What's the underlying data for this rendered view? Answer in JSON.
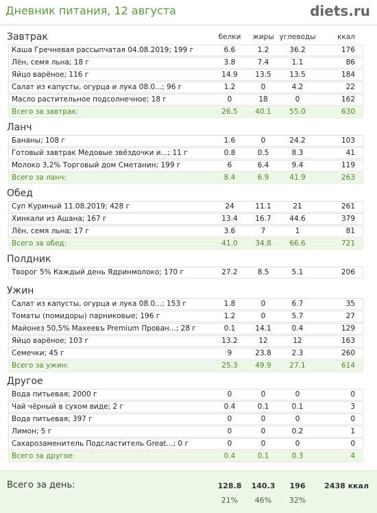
{
  "header": {
    "title": "Дневник питания, 12 августа",
    "logo": "diets.ru"
  },
  "columns": [
    "белки",
    "жиры",
    "углеводы",
    "ккал"
  ],
  "sections": [
    {
      "title": "Завтрак",
      "rows": [
        [
          "Каша Гречневая рассыпчатая 04.08.2019; 199 г",
          "6.6",
          "1.2",
          "36.2",
          "176"
        ],
        [
          "Лён, семя льна; 18 г",
          "3.8",
          "7.4",
          "1.1",
          "86"
        ],
        [
          "Яйцо варёное; 116 г",
          "14.9",
          "13.5",
          "13.5",
          "184"
        ],
        [
          "Салат из капусты, огурца и лука 08.0...; 96 г",
          "1.2",
          "0",
          "4.2",
          "22"
        ],
        [
          "Масло растительное подсолнечное; 18 г",
          "0",
          "18",
          "0",
          "162"
        ]
      ],
      "total": [
        "Всего за завтрак:",
        "26.5",
        "40.1",
        "55.0",
        "630"
      ]
    },
    {
      "title": "Ланч",
      "rows": [
        [
          "Бананы; 108 г",
          "1.6",
          "0",
          "24.2",
          "103"
        ],
        [
          "Готовый завтрак Медовые звёздочки и...; 11 г",
          "0.8",
          "0.5",
          "8.3",
          "41"
        ],
        [
          "Молоко 3,2%  Торговый дом Сметанин; 199 г",
          "6",
          "6.4",
          "9.4",
          "119"
        ]
      ],
      "total": [
        "Всего за ланч:",
        "8.4",
        "6.9",
        "41.9",
        "263"
      ]
    },
    {
      "title": "Обед",
      "rows": [
        [
          "Суп Куриный 11.08.2019; 428 г",
          "24",
          "11.1",
          "21",
          "261"
        ],
        [
          "Хинкали из Ашана; 167 г",
          "13.4",
          "16.7",
          "44.6",
          "379"
        ],
        [
          "Лён, семя льна; 17 г",
          "3.6",
          "7",
          "1",
          "81"
        ]
      ],
      "total": [
        "Всего за обед:",
        "41.0",
        "34.8",
        "66.6",
        "721"
      ]
    },
    {
      "title": "Полдник",
      "rows": [
        [
          "Творог 5% Каждый день Ядринмолоко; 170 г",
          "27.2",
          "8.5",
          "5.1",
          "206"
        ]
      ]
    },
    {
      "title": "Ужин",
      "rows": [
        [
          "Салат из капусты, огурца и лука 08.0...; 153 г",
          "1.8",
          "0",
          "6.7",
          "35"
        ],
        [
          "Томаты (помидоры) парниковые; 196 г",
          "1.2",
          "0",
          "5.7",
          "27"
        ],
        [
          "Майонез 50,5% Махеевъ Premium Прован...; 28 г",
          "0.1",
          "14.1",
          "0.4",
          "129"
        ],
        [
          "Яйцо варёное; 103 г",
          "13.2",
          "12",
          "12",
          "163"
        ],
        [
          "Семечки; 45 г",
          "9",
          "23.8",
          "2.3",
          "260"
        ]
      ],
      "total": [
        "Всего за ужин:",
        "25.3",
        "49.9",
        "27.1",
        "614"
      ]
    },
    {
      "title": "Другое",
      "rows": [
        [
          "Вода питьевая; 2000 г",
          "0",
          "0",
          "0",
          "0"
        ],
        [
          "Чай чёрный в сухом виде; 2 г",
          "0.4",
          "0.1",
          "0.1",
          "3"
        ],
        [
          "Вода питьевая; 397 г",
          "0",
          "0",
          "0",
          "0"
        ],
        [
          "Лимон; 5 г",
          "0",
          "0",
          "0.2",
          "1"
        ],
        [
          "Сахарозаменитель Подсластитель Great...; 0 г",
          "0",
          "0",
          "0",
          "0"
        ]
      ],
      "total": [
        "Всего за другое:",
        "0.4",
        "0.1",
        "0.3",
        "4"
      ]
    }
  ],
  "day_total": {
    "label": "Всего за день:",
    "values": [
      "128.8",
      "140.3",
      "196",
      "2438 ккал"
    ],
    "percents": [
      "21%",
      "46%",
      "32%"
    ]
  }
}
